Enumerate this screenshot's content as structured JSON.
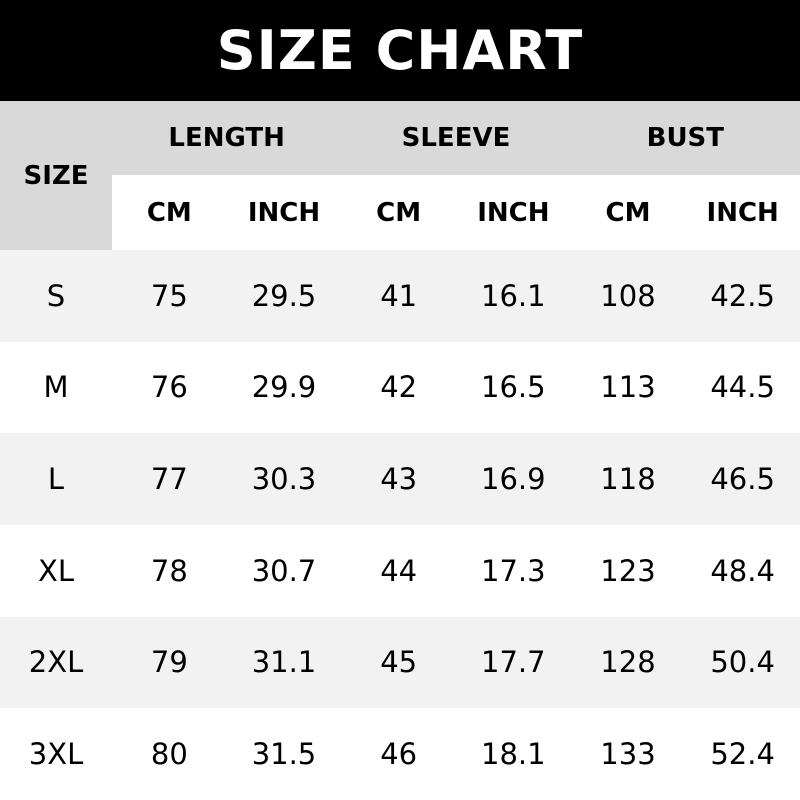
{
  "title": "SIZE CHART",
  "header": {
    "size": "SIZE",
    "groups": [
      "LENGTH",
      "SLEEVE",
      "BUST"
    ],
    "units": [
      "CM",
      "INCH",
      "CM",
      "INCH",
      "CM",
      "INCH"
    ]
  },
  "colors": {
    "title_bg": "#000000",
    "header_bg": "#d9d9d9",
    "row_alt": "#f2f2f2"
  },
  "rows": [
    {
      "size": "S",
      "values": [
        "75",
        "29.5",
        "41",
        "16.1",
        "108",
        "42.5"
      ]
    },
    {
      "size": "M",
      "values": [
        "76",
        "29.9",
        "42",
        "16.5",
        "113",
        "44.5"
      ]
    },
    {
      "size": "L",
      "values": [
        "77",
        "30.3",
        "43",
        "16.9",
        "118",
        "46.5"
      ]
    },
    {
      "size": "XL",
      "values": [
        "78",
        "30.7",
        "44",
        "17.3",
        "123",
        "48.4"
      ]
    },
    {
      "size": "2XL",
      "values": [
        "79",
        "31.1",
        "45",
        "17.7",
        "128",
        "50.4"
      ]
    },
    {
      "size": "3XL",
      "values": [
        "80",
        "31.5",
        "46",
        "18.1",
        "133",
        "52.4"
      ]
    }
  ]
}
